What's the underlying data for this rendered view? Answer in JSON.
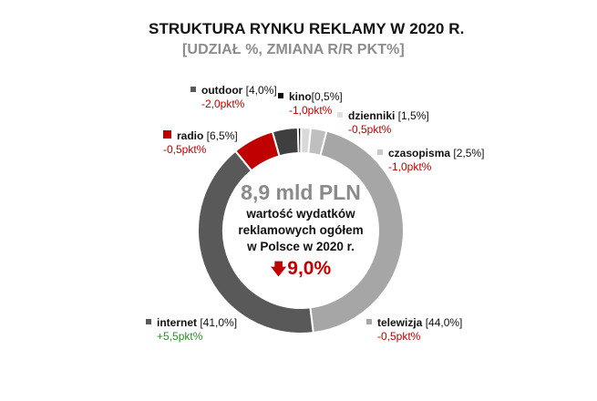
{
  "title": {
    "main": "STRUKTURA RYNKU REKLAMY W 2020 R.",
    "subtitle": "[UDZIAŁ %, ZMIANA R/R PKT%]"
  },
  "center": {
    "value": "8,9 mld PLN",
    "line1": "wartość wydatków",
    "line2": "reklamowych ogółem",
    "line3": "w Polsce w 2020 r.",
    "change_arrow": "🡇",
    "change": "9,0%"
  },
  "labels": {
    "outdoor": {
      "name": "outdoor",
      "share": " [4,0%]",
      "delta": "-2,0pkt%"
    },
    "kino": {
      "name": "kino",
      "share": "[0,5%]",
      "delta": "-1,0pkt%"
    },
    "dzienniki": {
      "name": "dzienniki",
      "share": " [1,5%]",
      "delta": "-0,5pkt%"
    },
    "czasopisma": {
      "name": "czasopisma",
      "share": " [2,5%]",
      "delta": "-1,0pkt%"
    },
    "radio": {
      "name": "radio",
      "share": " [6,5%]",
      "delta": "-0,5pkt%"
    },
    "internet": {
      "name": "internet",
      "share": " [41,0%]",
      "delta": "+5,5pkt%"
    },
    "telewizja": {
      "name": "telewizja",
      "share": " [44,0%]",
      "delta": "-0,5pkt%"
    }
  },
  "colors": {
    "telewizja": "#a6a6a6",
    "internet": "#595959",
    "radio": "#c00000",
    "outdoor": "#3f3f3f",
    "kino": "#0d0d0d",
    "dzienniki": "#d9d9d9",
    "czasopisma": "#bfbfbf",
    "negative": "#c00000",
    "positive": "#2e8b2e"
  },
  "chart_data": {
    "type": "pie",
    "subtype": "donut",
    "title": "STRUKTURA RYNKU REKLAMY W 2020 R.",
    "subtitle": "[UDZIAŁ %, ZMIANA R/R PKT%]",
    "categories": [
      "telewizja",
      "internet",
      "radio",
      "outdoor",
      "kino",
      "dzienniki",
      "czasopisma"
    ],
    "values": [
      44.0,
      41.0,
      6.5,
      4.0,
      0.5,
      1.5,
      2.5
    ],
    "yoy_change_pp": [
      -0.5,
      5.5,
      -0.5,
      -2.0,
      -1.0,
      -0.5,
      -1.0
    ],
    "center_annotation": {
      "total": "8,9 mld PLN",
      "description": "wartość wydatków reklamowych ogółem w Polsce w 2020 r.",
      "change": "-9,0%"
    },
    "units": "% share; change in percentage points y/y",
    "legend": "inline labels around donut"
  }
}
